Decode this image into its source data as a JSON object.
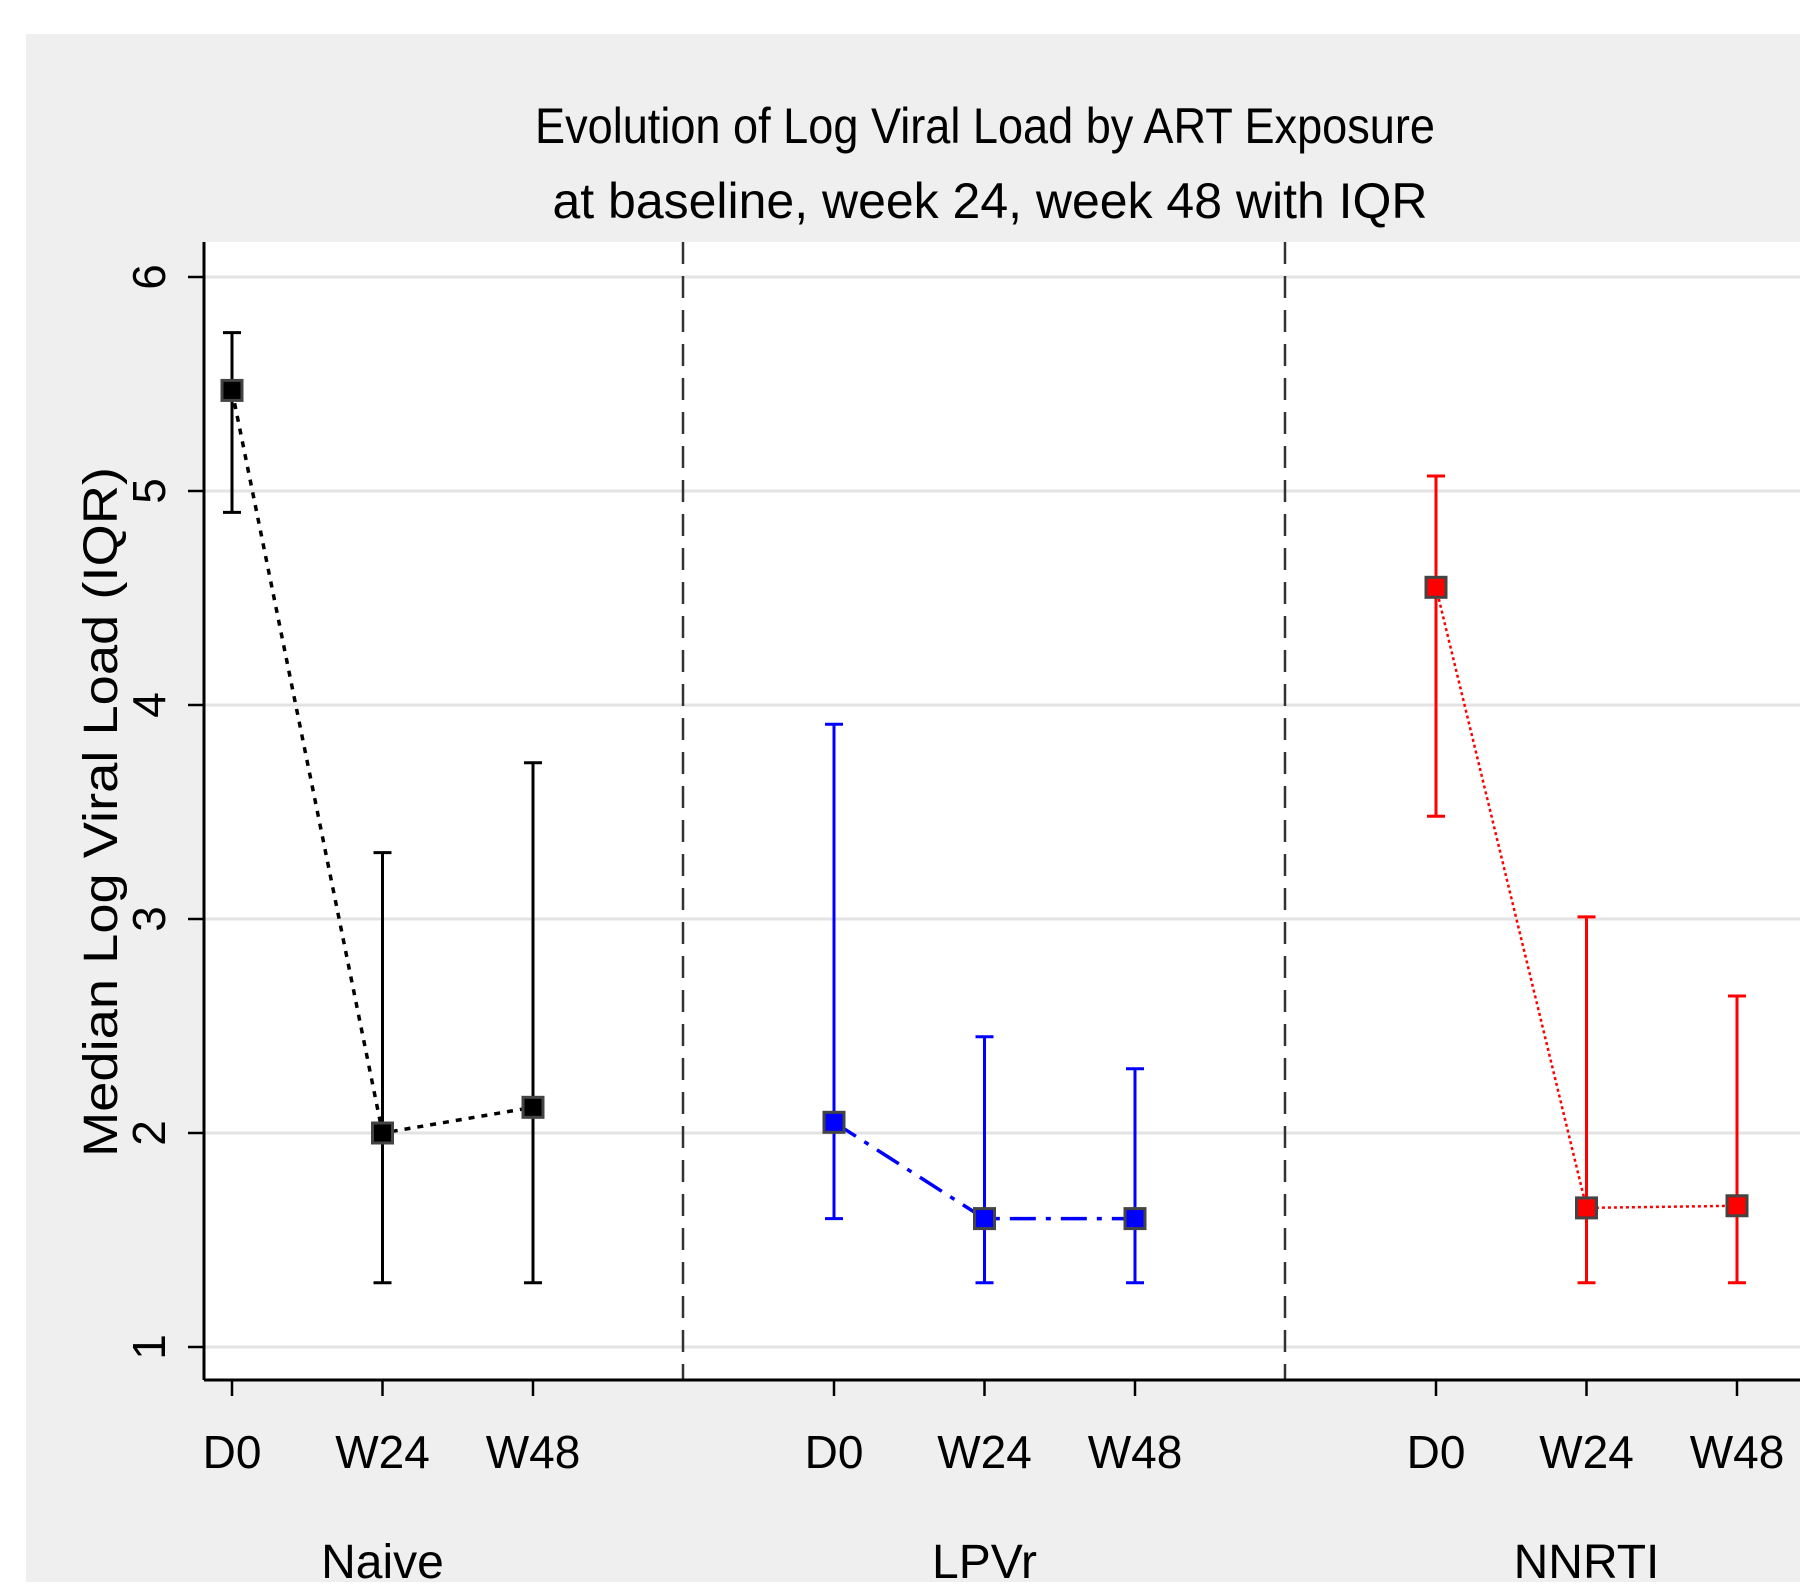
{
  "colors": {
    "outer_background": "#efefef",
    "plot_background": "#ffffff",
    "gridline": "#e3e3e3",
    "naive": "#000000",
    "lpvr": "#0000ff",
    "nnrti": "#ff0000",
    "divider": "#333333"
  },
  "chart_data": {
    "type": "scatter",
    "title": "Evolution of Log Viral Load by ART Exposure",
    "subtitle": "at baseline, week 24, week 48 with IQR",
    "ylabel": "Median Log Viral Load (IQR)",
    "xlabel": "",
    "ylim": [
      0.85,
      6.15
    ],
    "yticks": [
      "1",
      "2",
      "3",
      "4",
      "5",
      "6"
    ],
    "grid": true,
    "timepoints": [
      "D0",
      "W24",
      "W48"
    ],
    "groups": [
      {
        "label": "Naive",
        "color": "#000000",
        "line_style": "dotted",
        "points": [
          {
            "x": "D0",
            "median": 5.47,
            "q1": 4.9,
            "q3": 5.74
          },
          {
            "x": "W24",
            "median": 2.0,
            "q1": 1.3,
            "q3": 3.31
          },
          {
            "x": "W48",
            "median": 2.12,
            "q1": 1.3,
            "q3": 3.73
          }
        ]
      },
      {
        "label": "LPVr",
        "color": "#0000ff",
        "line_style": "dash-dot",
        "points": [
          {
            "x": "D0",
            "median": 2.05,
            "q1": 1.6,
            "q3": 3.91
          },
          {
            "x": "W24",
            "median": 1.6,
            "q1": 1.3,
            "q3": 2.45
          },
          {
            "x": "W48",
            "median": 1.6,
            "q1": 1.3,
            "q3": 2.3
          }
        ]
      },
      {
        "label": "NNRTI",
        "color": "#ff0000",
        "line_style": "fine-dotted",
        "points": [
          {
            "x": "D0",
            "median": 4.55,
            "q1": 3.48,
            "q3": 5.07
          },
          {
            "x": "W24",
            "median": 1.65,
            "q1": 1.3,
            "q3": 3.01
          },
          {
            "x": "W48",
            "median": 1.66,
            "q1": 1.3,
            "q3": 2.64
          }
        ]
      }
    ]
  }
}
